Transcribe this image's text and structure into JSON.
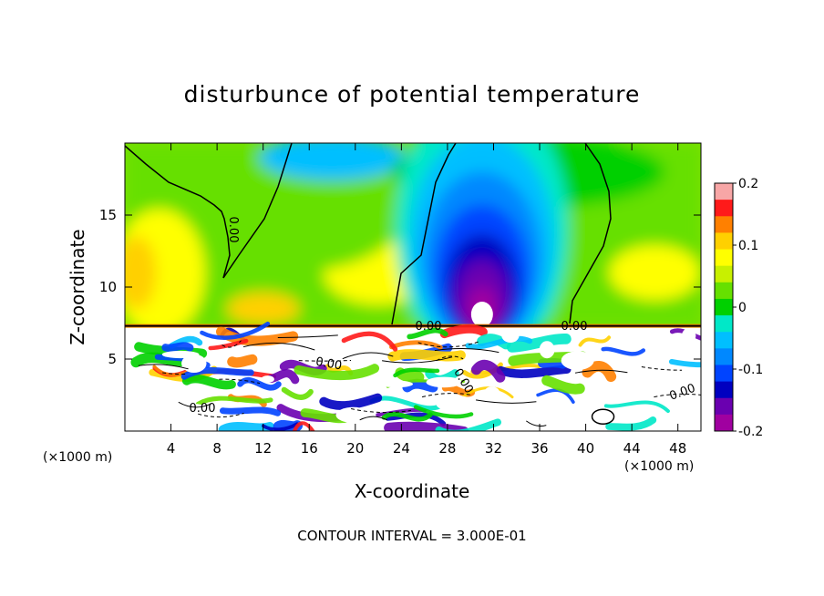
{
  "chart_data": {
    "type": "heatmap",
    "title": "disturbunce of potential temperature",
    "xlabel": "X-coordinate",
    "ylabel": "Z-coordinate",
    "x_unit": "(×1000 m)",
    "x_unit_right": "(×1000 m)",
    "xlim": [
      0,
      50
    ],
    "ylim": [
      0,
      20
    ],
    "x_ticks": [
      4,
      8,
      12,
      16,
      20,
      24,
      28,
      32,
      36,
      40,
      44,
      48
    ],
    "y_ticks": [
      5,
      10,
      15
    ],
    "colorbar": {
      "min": -0.2,
      "max": 0.2,
      "tick_values": [
        0.2,
        0.1,
        0,
        -0.1,
        -0.2
      ],
      "tick_labels": [
        "0.2",
        "0.1",
        "0",
        "-0.1",
        "-0.2"
      ],
      "colors": [
        "#f7a6a6",
        "#ff1a1a",
        "#ff8000",
        "#ffd000",
        "#ffff00",
        "#c8f000",
        "#66e000",
        "#00d000",
        "#00e8c8",
        "#00bfff",
        "#0088ff",
        "#0044ff",
        "#0000c0",
        "#6a00b0",
        "#a000a0"
      ]
    },
    "contour_label": "0.00",
    "contour_interval_text": "CONTOUR INTERVAL = 3.000E-01",
    "features": [
      {
        "kind": "cold-plume",
        "x": 31,
        "z": 11,
        "width_km": 14,
        "value": -0.2
      },
      {
        "kind": "cool-region",
        "x": 19,
        "z": 17,
        "value": -0.05
      },
      {
        "kind": "warm-region",
        "x": 1,
        "z": 11,
        "value": 0.1
      },
      {
        "kind": "inversion-layer",
        "z": 7.3
      }
    ]
  }
}
